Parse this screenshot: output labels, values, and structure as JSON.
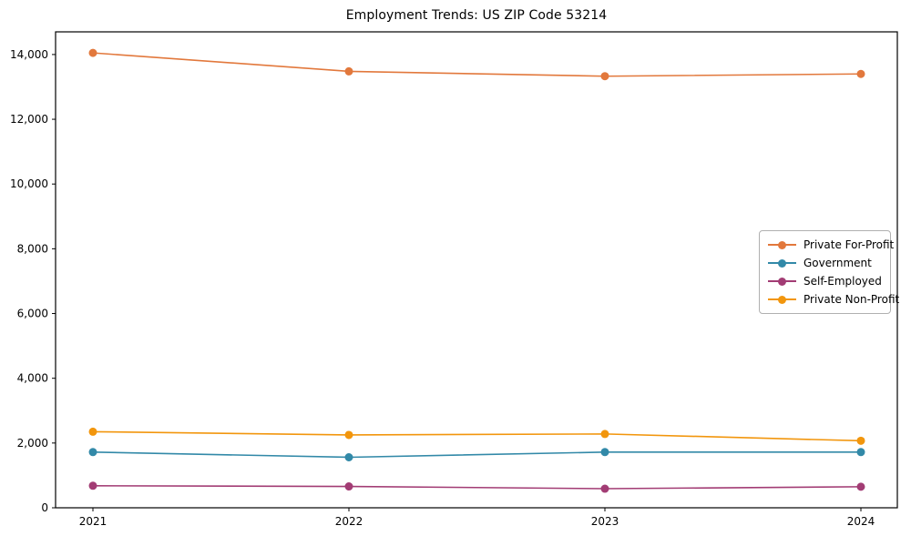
{
  "chart_data": {
    "type": "line",
    "title": "Employment Trends: US ZIP Code 53214",
    "categories": [
      "2021",
      "2022",
      "2023",
      "2024"
    ],
    "series": [
      {
        "name": "Private For-Profit",
        "color": "#E2783C",
        "values": [
          14050,
          13480,
          13330,
          13400
        ]
      },
      {
        "name": "Government",
        "color": "#3289A8",
        "values": [
          1720,
          1560,
          1720,
          1720
        ]
      },
      {
        "name": "Self-Employed",
        "color": "#A23C74",
        "values": [
          680,
          660,
          590,
          650
        ]
      },
      {
        "name": "Private Non-Profit",
        "color": "#F2960D",
        "values": [
          2350,
          2250,
          2280,
          2070
        ]
      }
    ],
    "yticks": [
      0,
      2000,
      4000,
      6000,
      8000,
      10000,
      12000,
      14000
    ],
    "ylim": [
      0,
      14700
    ],
    "xlabel": "",
    "ylabel": "",
    "grid": false,
    "legend_position": "center-right",
    "axis_color": "#000000",
    "text_color": "#000000",
    "background_color": "#ffffff"
  }
}
